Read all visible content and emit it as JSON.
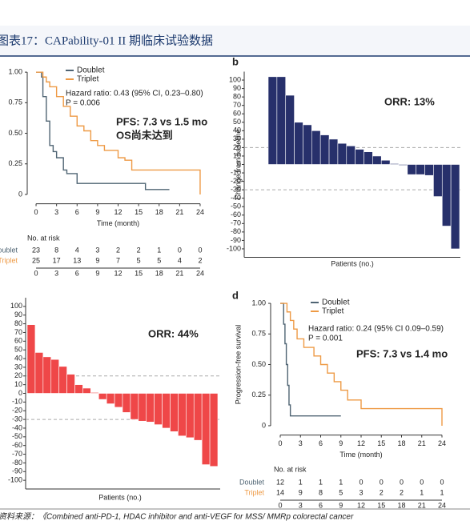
{
  "header": {
    "title": "图表17：CAPability-01 II 期临床试验数据"
  },
  "footer": {
    "source": "资料来源：《Combined anti-PD-1, HDAC inhibitor and anti-VEGF for MSS/ MMRp colorectal cancer"
  },
  "chart_data": [
    {
      "type": "step",
      "xlabel": "Time (month)",
      "xlim": [
        -1,
        25
      ],
      "ylim": [
        -0.05,
        1.05
      ],
      "xticks": [
        0,
        3,
        6,
        9,
        12,
        15,
        18,
        21,
        24
      ],
      "yticks": [
        0,
        0.25,
        {
          "value": 0.5,
          "label": "0.50"
        },
        0.75,
        {
          "value": 1,
          "label": "1.00"
        }
      ],
      "series": [
        {
          "name": "Doublet",
          "color": "#4f6473",
          "x": [
            0,
            0.8,
            1,
            1.5,
            2,
            2.5,
            3,
            4,
            4.5,
            6,
            16,
            19.5
          ],
          "values": [
            1,
            0.96,
            0.8,
            0.6,
            0.4,
            0.35,
            0.3,
            0.2,
            0.17,
            0.09,
            0.04,
            0.04
          ]
        },
        {
          "name": "Triplet",
          "color": "#ee9a45",
          "x": [
            0,
            1,
            1.5,
            2,
            3,
            4,
            5,
            6,
            7,
            8,
            9,
            10,
            12,
            13,
            14,
            24,
            24
          ],
          "values": [
            1,
            0.96,
            0.92,
            0.88,
            0.8,
            0.72,
            0.64,
            0.56,
            0.52,
            0.44,
            0.4,
            0.36,
            0.3,
            0.28,
            0.2,
            0.2,
            0
          ]
        }
      ],
      "annotations": [
        "Hazard ratio: 0.43 (95% CI, 0.23–0.80)",
        "P = 0.006",
        "PFS: 7.3 vs 1.5 mo",
        "OS尚未达到"
      ],
      "risk_table": {
        "title": "No. at risk",
        "rows": [
          {
            "name": "Doublet",
            "values": [
              23,
              8,
              4,
              3,
              2,
              2,
              1,
              0,
              0
            ]
          },
          {
            "name": "Triplet",
            "values": [
              25,
              17,
              13,
              9,
              7,
              5,
              5,
              4,
              2
            ]
          }
        ]
      }
    },
    {
      "type": "waterfall",
      "label": "b",
      "ylabel": "Change from baseline",
      "xlabel": "Patients (no.)",
      "color": "#27306b",
      "ylim": [
        -110,
        110
      ],
      "yticks": [
        100,
        90,
        80,
        70,
        60,
        50,
        40,
        30,
        20,
        10,
        0,
        -10,
        -20,
        -30,
        -40,
        -50,
        -60,
        -70,
        -80,
        -90,
        -100
      ],
      "values": [
        104,
        104,
        82,
        50,
        47,
        40,
        35,
        30,
        25,
        22,
        18,
        15,
        10,
        5,
        1,
        -1,
        -12,
        -12,
        -13,
        -38,
        -73,
        -100
      ],
      "reference_lines": [
        20,
        -30
      ],
      "annotations": [
        "ORR: 13%"
      ]
    },
    {
      "type": "waterfall",
      "xlabel": "Patients (no.)",
      "color": "#ef4748",
      "ylim": [
        -110,
        110
      ],
      "yticks": [
        100,
        90,
        80,
        70,
        60,
        50,
        40,
        30,
        20,
        10,
        0,
        -10,
        -20,
        -30,
        -40,
        -50,
        -60,
        -70,
        -80,
        -90,
        -100
      ],
      "values": [
        79,
        47,
        42,
        39,
        31,
        22,
        10,
        6,
        1,
        -7,
        -12,
        -16,
        -22,
        -30,
        -32,
        -33,
        -36,
        -40,
        -44,
        -49,
        -51,
        -54,
        -82,
        -84
      ],
      "reference_lines": [
        20,
        -30
      ],
      "annotations": [
        "ORR: 44%"
      ]
    },
    {
      "type": "step",
      "label": "d",
      "ylabel": "Progression-free survival",
      "xlabel": "Time (month)",
      "xlim": [
        -1,
        25
      ],
      "ylim": [
        -0.05,
        1.05
      ],
      "xticks": [
        0,
        3,
        6,
        9,
        12,
        15,
        18,
        21,
        24
      ],
      "yticks": [
        0,
        0.25,
        {
          "value": 0.5,
          "label": "0.50"
        },
        0.75,
        {
          "value": 1,
          "label": "1.00"
        }
      ],
      "series": [
        {
          "name": "Doublet",
          "color": "#4f6473",
          "x": [
            0,
            0.5,
            0.7,
            0.9,
            1.1,
            1.3,
            1.5,
            9
          ],
          "values": [
            1,
            0.83,
            0.67,
            0.5,
            0.33,
            0.17,
            0.08,
            0.08
          ]
        },
        {
          "name": "Triplet",
          "color": "#ee9a45",
          "x": [
            0,
            1,
            1.5,
            2,
            2.5,
            3.5,
            5,
            6,
            7,
            8,
            9,
            10,
            12,
            24,
            24
          ],
          "values": [
            1,
            0.93,
            0.86,
            0.79,
            0.71,
            0.64,
            0.57,
            0.5,
            0.43,
            0.36,
            0.29,
            0.21,
            0.14,
            0.14,
            0
          ]
        }
      ],
      "annotations": [
        "Hazard ratio: 0.24 (95% CI 0.09–0.59)",
        "P = 0.001",
        "PFS: 7.3 vs 1.4 mo"
      ],
      "risk_table": {
        "title": "No. at risk",
        "rows": [
          {
            "name": "Doublet",
            "values": [
              12,
              1,
              1,
              1,
              0,
              0,
              0,
              0,
              0
            ]
          },
          {
            "name": "Triplet",
            "values": [
              14,
              9,
              8,
              5,
              3,
              2,
              2,
              1,
              1
            ]
          }
        ]
      }
    }
  ]
}
